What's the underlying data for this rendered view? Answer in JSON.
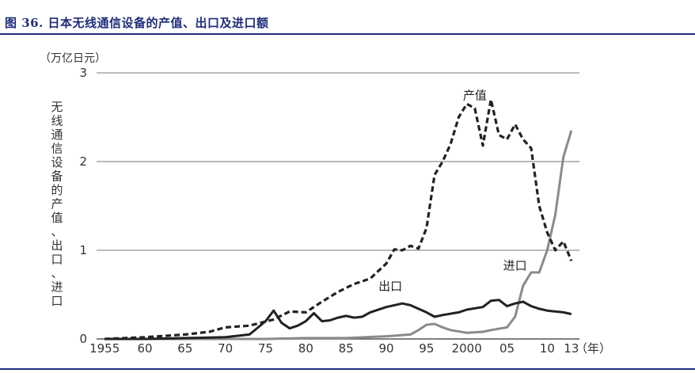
{
  "caption": "图 36. 日本无线通信设备的产值、出口及进口额",
  "chart_data": {
    "type": "line",
    "unit": "（万亿日元）",
    "ylabel": "无线通信设备的产值、出口、进口",
    "xunit": "（年）",
    "ylim": [
      0,
      3
    ],
    "xlim": [
      1954,
      2014
    ],
    "yticks": [
      0,
      1,
      2,
      3
    ],
    "xticks": [
      {
        "value": 1955,
        "label": "1955"
      },
      {
        "value": 1960,
        "label": "60"
      },
      {
        "value": 1965,
        "label": "65"
      },
      {
        "value": 1970,
        "label": "70"
      },
      {
        "value": 1975,
        "label": "75"
      },
      {
        "value": 1980,
        "label": "80"
      },
      {
        "value": 1985,
        "label": "85"
      },
      {
        "value": 1990,
        "label": "90"
      },
      {
        "value": 1995,
        "label": "95"
      },
      {
        "value": 2000,
        "label": "2000"
      },
      {
        "value": 2005,
        "label": "05"
      },
      {
        "value": 2010,
        "label": "10"
      },
      {
        "value": 2013,
        "label": "13"
      }
    ],
    "grid": true,
    "series": [
      {
        "name": "产值",
        "style": "dashed",
        "color": "#222222",
        "points": [
          [
            1955,
            0.0
          ],
          [
            1960,
            0.02
          ],
          [
            1965,
            0.05
          ],
          [
            1968,
            0.08
          ],
          [
            1970,
            0.13
          ],
          [
            1973,
            0.15
          ],
          [
            1976,
            0.22
          ],
          [
            1978,
            0.31
          ],
          [
            1980,
            0.3
          ],
          [
            1982,
            0.42
          ],
          [
            1984,
            0.53
          ],
          [
            1986,
            0.62
          ],
          [
            1988,
            0.68
          ],
          [
            1990,
            0.85
          ],
          [
            1991,
            1.01
          ],
          [
            1992,
            1.0
          ],
          [
            1993,
            1.05
          ],
          [
            1994,
            1.02
          ],
          [
            1995,
            1.25
          ],
          [
            1996,
            1.85
          ],
          [
            1997,
            2.0
          ],
          [
            1998,
            2.2
          ],
          [
            1999,
            2.5
          ],
          [
            2000,
            2.65
          ],
          [
            2001,
            2.6
          ],
          [
            2002,
            2.18
          ],
          [
            2003,
            2.7
          ],
          [
            2004,
            2.3
          ],
          [
            2005,
            2.25
          ],
          [
            2006,
            2.42
          ],
          [
            2007,
            2.25
          ],
          [
            2008,
            2.15
          ],
          [
            2009,
            1.5
          ],
          [
            2010,
            1.2
          ],
          [
            2011,
            1.0
          ],
          [
            2012,
            1.1
          ],
          [
            2013,
            0.88
          ]
        ]
      },
      {
        "name": "出口",
        "style": "solid",
        "color": "#222222",
        "points": [
          [
            1955,
            0.0
          ],
          [
            1960,
            0.0
          ],
          [
            1965,
            0.01
          ],
          [
            1970,
            0.02
          ],
          [
            1973,
            0.05
          ],
          [
            1975,
            0.2
          ],
          [
            1976,
            0.32
          ],
          [
            1977,
            0.18
          ],
          [
            1978,
            0.12
          ],
          [
            1979,
            0.15
          ],
          [
            1980,
            0.2
          ],
          [
            1981,
            0.29
          ],
          [
            1982,
            0.2
          ],
          [
            1983,
            0.21
          ],
          [
            1984,
            0.24
          ],
          [
            1985,
            0.26
          ],
          [
            1986,
            0.24
          ],
          [
            1987,
            0.25
          ],
          [
            1988,
            0.3
          ],
          [
            1990,
            0.36
          ],
          [
            1992,
            0.4
          ],
          [
            1993,
            0.38
          ],
          [
            1995,
            0.3
          ],
          [
            1996,
            0.25
          ],
          [
            1997,
            0.27
          ],
          [
            1999,
            0.3
          ],
          [
            2000,
            0.33
          ],
          [
            2002,
            0.36
          ],
          [
            2003,
            0.43
          ],
          [
            2004,
            0.44
          ],
          [
            2005,
            0.37
          ],
          [
            2006,
            0.4
          ],
          [
            2007,
            0.42
          ],
          [
            2008,
            0.37
          ],
          [
            2009,
            0.34
          ],
          [
            2010,
            0.32
          ],
          [
            2012,
            0.3
          ],
          [
            2013,
            0.28
          ]
        ]
      },
      {
        "name": "进口",
        "style": "solid",
        "color": "#8a8a8a",
        "points": [
          [
            1955,
            0.0
          ],
          [
            1975,
            0.0
          ],
          [
            1980,
            0.01
          ],
          [
            1985,
            0.01
          ],
          [
            1990,
            0.03
          ],
          [
            1993,
            0.05
          ],
          [
            1994,
            0.1
          ],
          [
            1995,
            0.16
          ],
          [
            1996,
            0.17
          ],
          [
            1997,
            0.13
          ],
          [
            1998,
            0.1
          ],
          [
            2000,
            0.07
          ],
          [
            2002,
            0.08
          ],
          [
            2003,
            0.1
          ],
          [
            2005,
            0.13
          ],
          [
            2006,
            0.25
          ],
          [
            2007,
            0.6
          ],
          [
            2008,
            0.75
          ],
          [
            2009,
            0.75
          ],
          [
            2010,
            1.0
          ],
          [
            2011,
            1.4
          ],
          [
            2012,
            2.05
          ],
          [
            2013,
            2.35
          ]
        ]
      }
    ],
    "annotations": [
      {
        "text": "产值",
        "series": "产值",
        "at": [
          2001,
          2.7
        ]
      },
      {
        "text": "出口",
        "series": "出口",
        "at": [
          1990.5,
          0.55
        ]
      },
      {
        "text": "进口",
        "series": "进口",
        "at": [
          2006,
          0.78
        ]
      }
    ]
  }
}
